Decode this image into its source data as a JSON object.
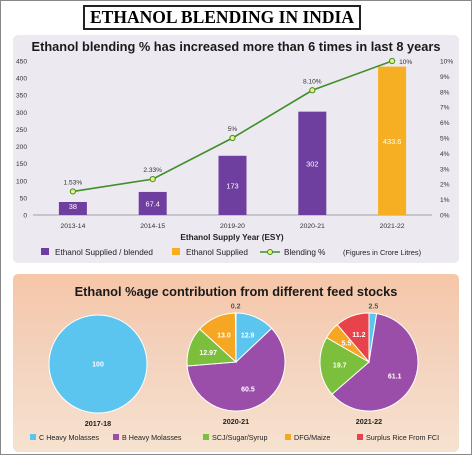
{
  "page_title": "ETHANOL BLENDING IN INDIA",
  "colors": {
    "bar_purple": "#6f3fa0",
    "bar_orange": "#f6ae22",
    "line_green": "#3f8f2a",
    "marker_yellow": "#e9f272",
    "c_heavy": "#5bc4ef",
    "b_heavy": "#9a4ea9",
    "scj": "#7cbf3c",
    "dfg": "#f5a623",
    "surplus_rice": "#e8434a"
  },
  "chart_data": [
    {
      "type": "bar",
      "title": "Ethanol blending % has increased more than 6 times in last 8 years",
      "xlabel": "Ethanol Supply Year (ESY)",
      "note": "(Figures in Crore Litres)",
      "categories": [
        "2013-14",
        "2014-15",
        "2019-20",
        "2020-21",
        "2021-22"
      ],
      "ylim": [
        0,
        450
      ],
      "yticks": [
        0,
        50,
        100,
        150,
        200,
        250,
        300,
        350,
        400,
        450
      ],
      "y2lim": [
        0,
        10
      ],
      "y2ticks": [
        "0%",
        "1%",
        "2%",
        "3%",
        "4%",
        "5%",
        "6%",
        "7%",
        "8%",
        "9%",
        "10%"
      ],
      "series": [
        {
          "name": "Ethanol Supplied / blended",
          "values": [
            38,
            67.4,
            173,
            302,
            null
          ],
          "labels": [
            "38",
            "67.4",
            "173",
            "302",
            ""
          ]
        },
        {
          "name": "Ethanol Supplied",
          "values": [
            null,
            null,
            null,
            null,
            433.6
          ],
          "labels": [
            "",
            "",
            "",
            "",
            "433.6"
          ]
        },
        {
          "name": "Blending %",
          "type": "line",
          "axis": "right",
          "values": [
            1.53,
            2.33,
            5,
            8.1,
            10
          ],
          "labels": [
            "1.53%",
            "2.33%",
            "5%",
            "8.10%",
            "10%"
          ]
        }
      ],
      "legend_position": "bottom"
    },
    {
      "type": "pie",
      "title": "Ethanol %age contribution from different feed stocks",
      "legend": [
        "C Heavy Molasses",
        "B Heavy Molasses",
        "SCJ/Sugar/Syrup",
        "DFG/Maize",
        "Surplus Rice From FCI"
      ],
      "pies": [
        {
          "label": "2017-18",
          "values": [
            100,
            0,
            0,
            0,
            0
          ],
          "value_labels": [
            "100",
            "",
            "",
            "",
            ""
          ]
        },
        {
          "label": "2020-21",
          "values": [
            12.9,
            60.5,
            12.97,
            13.0,
            0.2
          ],
          "value_labels": [
            "12.9",
            "60.5",
            "12.97",
            "13.0",
            "0.2"
          ]
        },
        {
          "label": "2021-22",
          "values": [
            2.5,
            61.1,
            19.7,
            5.5,
            11.2
          ],
          "value_labels": [
            "2.5",
            "61.1",
            "19.7",
            "5.5",
            "11.2"
          ]
        }
      ],
      "legend_position": "bottom"
    }
  ]
}
